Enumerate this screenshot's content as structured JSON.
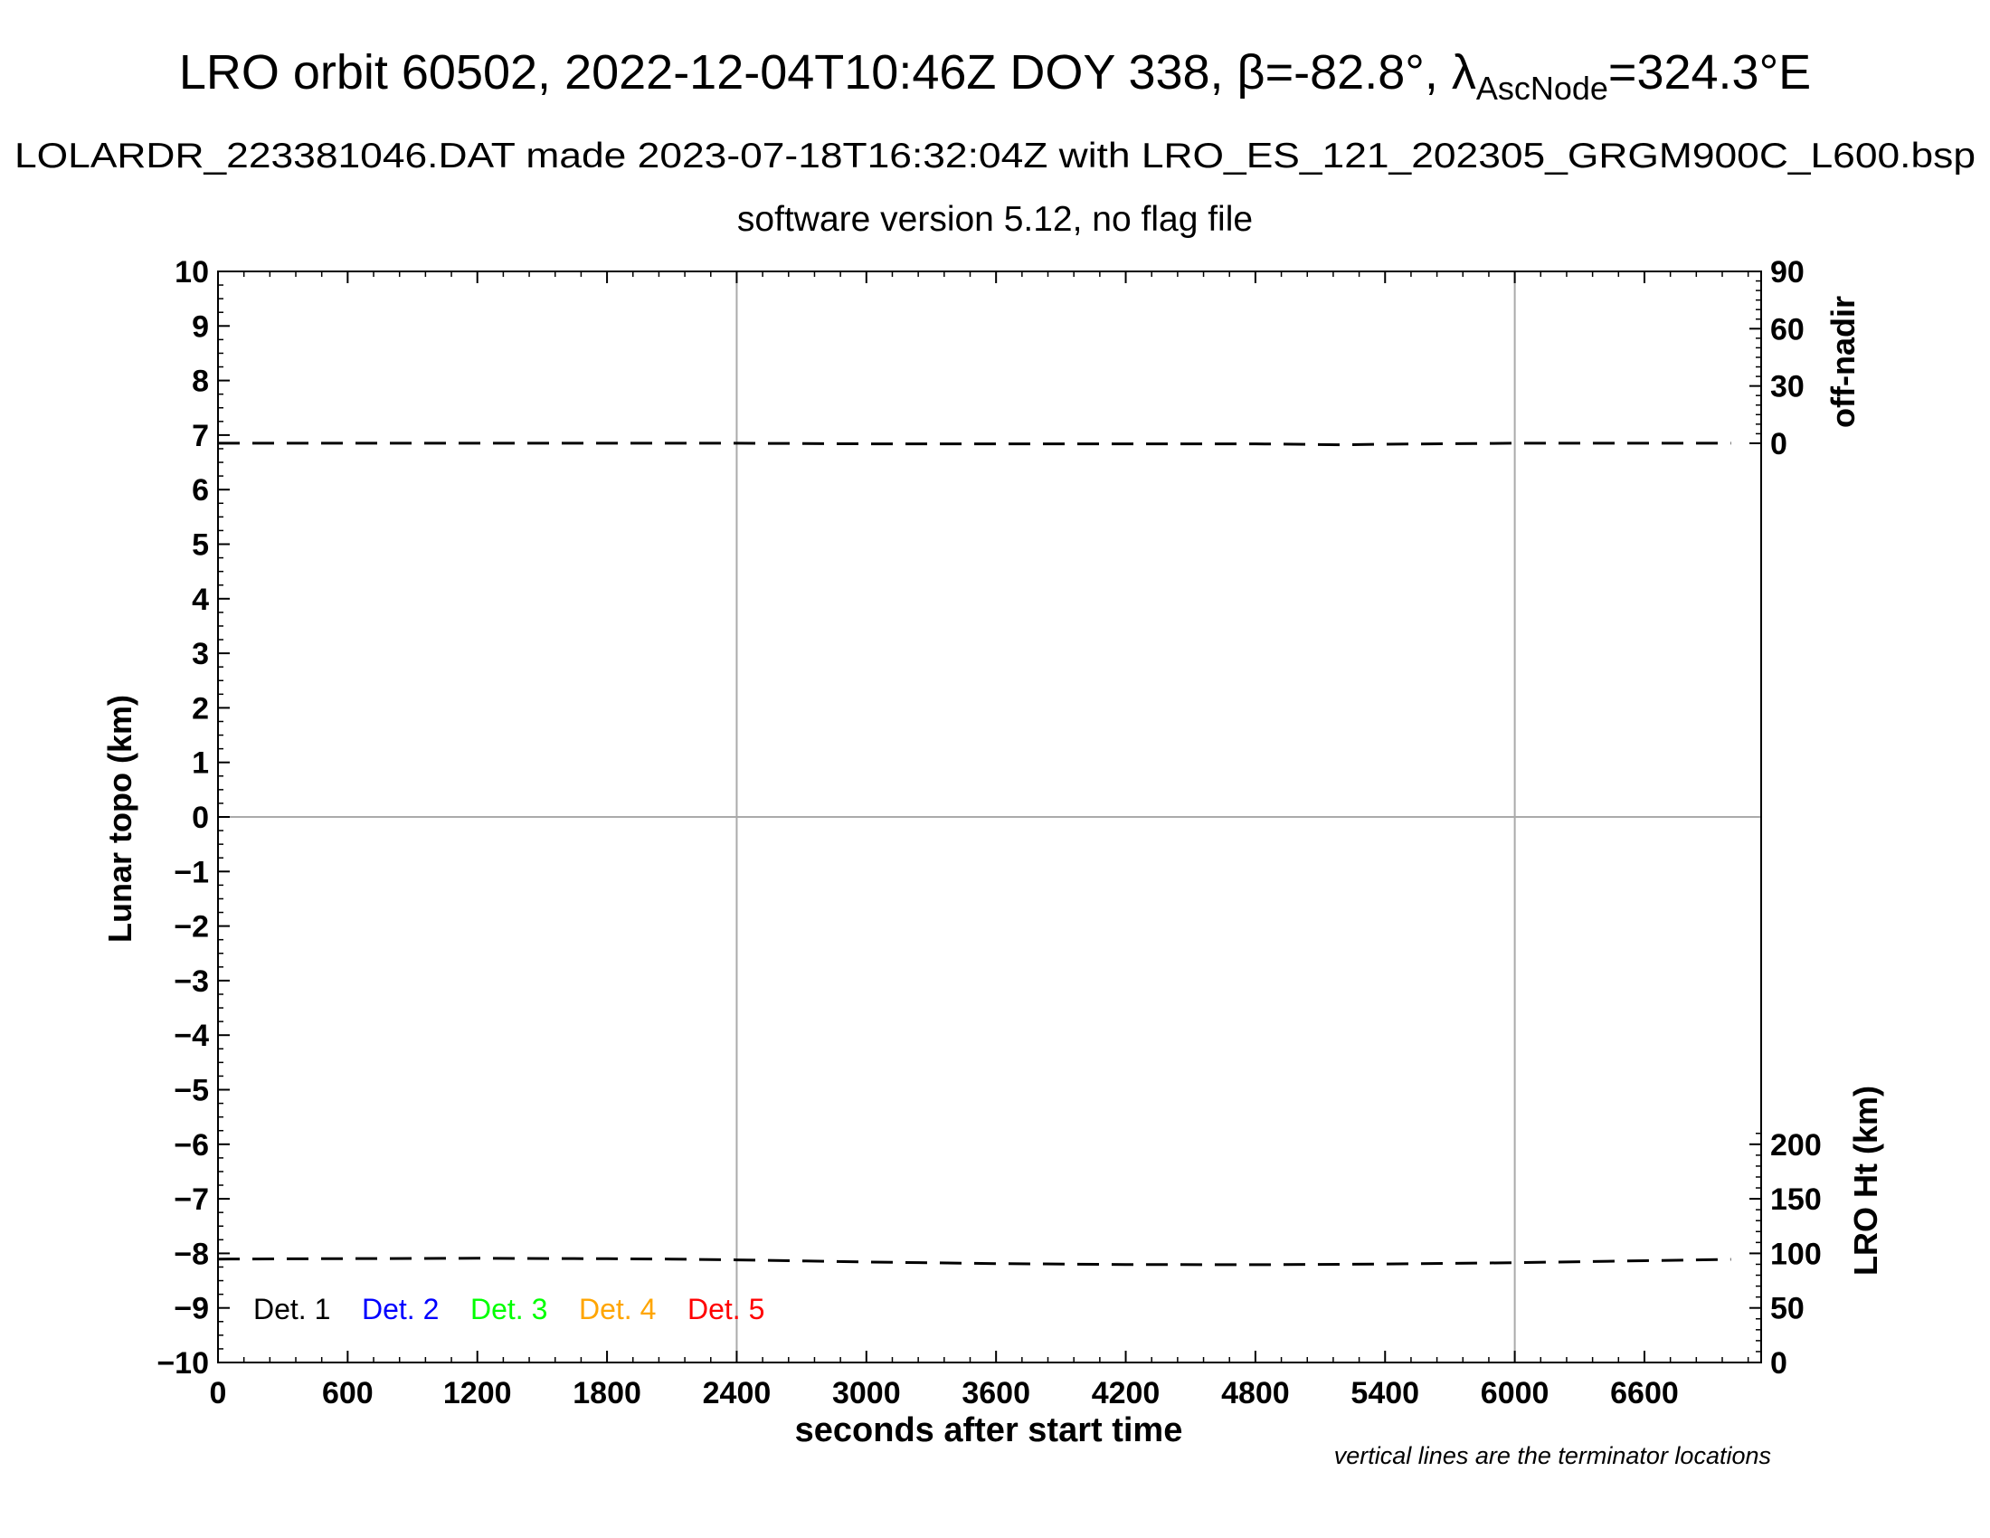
{
  "chart_data": {
    "type": "line",
    "title": {
      "prefix": "LRO orbit 60502, 2022-12-04T10:46Z DOY 338, ",
      "beta": "β=-82.8°, ",
      "lambda_sym": "λ",
      "lambda_sub": "AscNode",
      "lambda_val": "=324.3°E"
    },
    "subtitle": "LOLARDR_223381046.DAT made 2023-07-18T16:32:04Z with LRO_ES_121_202305_GRGM900C_L600.bsp",
    "subtitle2": "software version 5.12, no flag file",
    "xlabel": "seconds after start time",
    "ylabel": "Lunar topo (km)",
    "y2label_top": "off-nadir",
    "y2label_bottom": "LRO Ht (km)",
    "note": "vertical lines are the terminator locations",
    "xlim": [
      0,
      7140
    ],
    "ylim": [
      -10,
      10
    ],
    "xticks": [
      0,
      600,
      1200,
      1800,
      2400,
      3000,
      3600,
      4200,
      4800,
      5400,
      6000,
      6600
    ],
    "xtick_labels": [
      "0",
      "600",
      "1200",
      "1800",
      "2400",
      "3000",
      "3600",
      "4200",
      "4800",
      "5400",
      "6000",
      "6600"
    ],
    "yticks": [
      -10,
      -9,
      -8,
      -7,
      -6,
      -5,
      -4,
      -3,
      -2,
      -1,
      0,
      1,
      2,
      3,
      4,
      5,
      6,
      7,
      8,
      9,
      10
    ],
    "ytick_labels": [
      "−10",
      "−9",
      "−8",
      "−7",
      "−6",
      "−5",
      "−4",
      "−3",
      "−2",
      "−1",
      "0",
      "1",
      "2",
      "3",
      "4",
      "5",
      "6",
      "7",
      "8",
      "9",
      "10"
    ],
    "offnadir_axis": {
      "ticks": [
        0,
        30,
        60,
        90
      ],
      "labels": [
        "0",
        "30",
        "60",
        "90"
      ],
      "topo_at_0": 6.85,
      "topo_at_90": 10
    },
    "height_axis": {
      "ticks": [
        0,
        50,
        100,
        150,
        200
      ],
      "labels": [
        "0",
        "50",
        "100",
        "150",
        "200"
      ],
      "topo_at_0": -10,
      "km_per_topo_unit": 50
    },
    "terminators": [
      2400,
      6000
    ],
    "zero_line": 0,
    "legend": {
      "placement": "bottom-left",
      "items": [
        {
          "label": "Det. 1",
          "color": "#000000"
        },
        {
          "label": "Det. 2",
          "color": "#0000ff"
        },
        {
          "label": "Det. 3",
          "color": "#00ff00"
        },
        {
          "label": "Det. 4",
          "color": "#ffa500"
        },
        {
          "label": "Det. 5",
          "color": "#ff0000"
        }
      ]
    },
    "series": [
      {
        "axis": "off-nadir",
        "style": "dashed",
        "color": "#000000",
        "x": [
          0,
          600,
          1200,
          1800,
          2400,
          3000,
          3600,
          4200,
          4800,
          5200,
          5400,
          6000,
          6600,
          7000
        ],
        "values": [
          0.0,
          0.0,
          0.0,
          0.0,
          0.0,
          -0.3,
          -0.3,
          -0.3,
          -0.3,
          -0.8,
          -0.5,
          0.0,
          0.0,
          0.0
        ]
      },
      {
        "axis": "height",
        "style": "dashed",
        "color": "#000000",
        "x": [
          0,
          600,
          1200,
          1800,
          2100,
          2400,
          3000,
          3600,
          4200,
          4800,
          5400,
          6000,
          6600,
          7000
        ],
        "values": [
          94.8,
          95.2,
          95.5,
          95.1,
          94.8,
          94.0,
          92.1,
          90.6,
          89.8,
          89.6,
          90.2,
          91.5,
          93.3,
          94.5
        ]
      }
    ]
  }
}
